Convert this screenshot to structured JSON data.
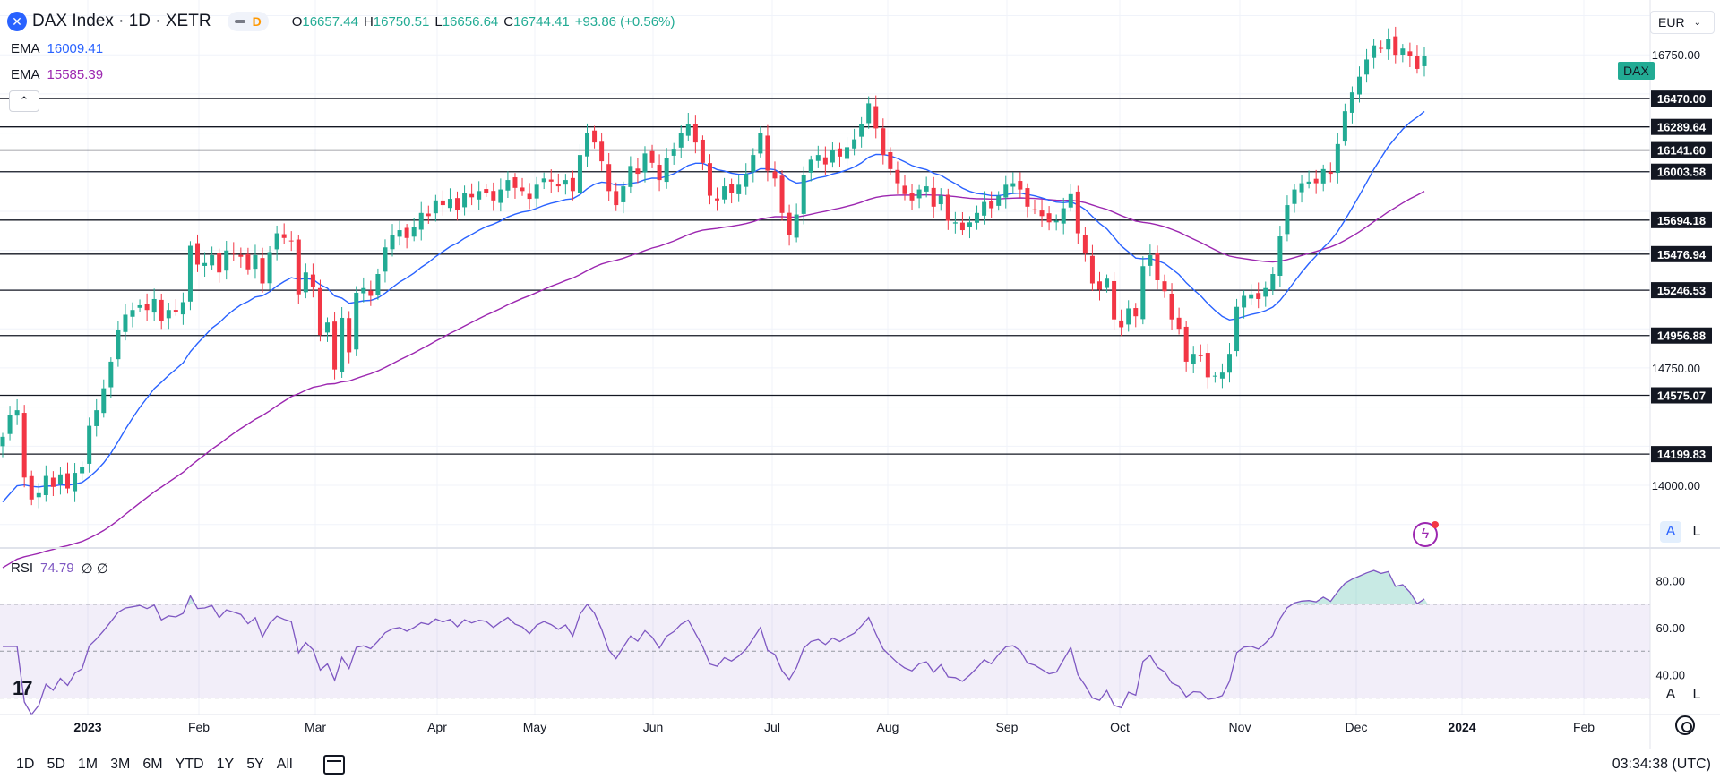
{
  "header": {
    "title": "DAX Index · 1D · XETR",
    "badge": "D",
    "ohlc": [
      {
        "k": "O",
        "v": "16657.44"
      },
      {
        "k": "H",
        "v": "16750.51"
      },
      {
        "k": "L",
        "v": "16656.64"
      },
      {
        "k": "C",
        "v": "16744.41"
      },
      {
        "k": "",
        "v": "+93.86 (+0.56%)"
      }
    ]
  },
  "indicators": {
    "ema_fast": {
      "label": "EMA",
      "value": "16009.41",
      "color": "#2962ff"
    },
    "ema_slow": {
      "label": "EMA",
      "value": "15585.39",
      "color": "#9c27b0"
    },
    "rsi": {
      "label": "RSI",
      "value": "74.79",
      "extra": "∅ ∅"
    }
  },
  "price_axis": {
    "currency": "EUR",
    "symbol_tag": "DAX",
    "scale_buttons": [
      "A",
      "L"
    ],
    "visible_ticks": [
      "16750.00",
      "14750.00",
      "14000.00"
    ]
  },
  "levels": [
    "16470.00",
    "16289.64",
    "16141.60",
    "16003.58",
    "15694.18",
    "15476.94",
    "15246.53",
    "14956.88",
    "14575.07",
    "14199.83"
  ],
  "rsi_axis": {
    "ticks": [
      "80.00",
      "60.00",
      "40.00"
    ],
    "band": [
      30,
      70
    ]
  },
  "time_axis": {
    "labels": [
      "2023",
      "Feb",
      "Mar",
      "Apr",
      "May",
      "Jun",
      "Jul",
      "Aug",
      "Sep",
      "Oct",
      "Nov",
      "Dec",
      "2024",
      "Feb"
    ],
    "bold": [
      "2023",
      "2024"
    ]
  },
  "toolbar": {
    "timeframes": [
      "1D",
      "5D",
      "1M",
      "3M",
      "6M",
      "YTD",
      "1Y",
      "5Y",
      "All"
    ],
    "clock": "03:34:38 (UTC)"
  },
  "colors": {
    "up": "#22ab94",
    "down": "#f23645",
    "rsi": "#7e57c2",
    "ema_fast": "#2962ff",
    "ema_slow": "#9c27b0"
  },
  "chart_data": [
    {
      "type": "candlestick",
      "title": "DAX Index · 1D · XETR",
      "x_range": [
        "2022-12",
        "2024-02"
      ],
      "y_range": [
        13600,
        17100
      ],
      "log_scale": false,
      "grid": true,
      "horizontal_levels": [
        16470.0,
        16289.64,
        16141.6,
        16003.58,
        15694.18,
        15476.94,
        15246.53,
        14956.88,
        14575.07,
        14199.83
      ],
      "series": [
        {
          "type": "candlestick",
          "close": [
            14310,
            14450,
            14480,
            14050,
            13910,
            13950,
            14060,
            13990,
            14070,
            13980,
            14080,
            14120,
            14380,
            14480,
            14620,
            14790,
            14990,
            15090,
            15120,
            15150,
            15120,
            15190,
            15050,
            15120,
            15110,
            15170,
            15530,
            15410,
            15420,
            15470,
            15360,
            15500,
            15480,
            15460,
            15380,
            15470,
            15290,
            15490,
            15610,
            15580,
            15560,
            15220,
            15360,
            15270,
            14960,
            15040,
            14740,
            15070,
            14850,
            15230,
            15260,
            15210,
            15350,
            15520,
            15600,
            15630,
            15580,
            15650,
            15740,
            15720,
            15820,
            15790,
            15830,
            15760,
            15870,
            15840,
            15880,
            15870,
            15820,
            15890,
            15950,
            15900,
            15880,
            15830,
            15920,
            15960,
            15940,
            15910,
            15950,
            15880,
            16110,
            16250,
            16190,
            16070,
            15880,
            15790,
            15910,
            16040,
            15990,
            16120,
            16060,
            15950,
            16090,
            16150,
            16250,
            16310,
            16190,
            16060,
            15850,
            15820,
            15910,
            15870,
            15920,
            15990,
            16110,
            16250,
            16010,
            15960,
            15740,
            15600,
            15730,
            15980,
            16080,
            16110,
            16050,
            16140,
            16100,
            16160,
            16210,
            16310,
            16440,
            16280,
            16110,
            16020,
            15930,
            15860,
            15820,
            15890,
            15910,
            15780,
            15850,
            15690,
            15680,
            15630,
            15680,
            15740,
            15810,
            15770,
            15850,
            15920,
            15930,
            15890,
            15780,
            15760,
            15720,
            15680,
            15690,
            15770,
            15860,
            15610,
            15480,
            15290,
            15250,
            15320,
            15060,
            15010,
            15130,
            15080,
            15400,
            15470,
            15310,
            15240,
            15060,
            15000,
            14790,
            14840,
            14830,
            14690,
            14700,
            14720,
            14840,
            15140,
            15210,
            15220,
            15190,
            15260,
            15350,
            15590,
            15790,
            15890,
            15930,
            15940,
            15930,
            16020,
            15990,
            16180,
            16390,
            16510,
            16610,
            16720,
            16810,
            16790,
            16850,
            16750,
            16790,
            16740,
            16660,
            16744
          ]
        },
        {
          "name": "EMA",
          "type": "line",
          "last": 16009.41
        },
        {
          "name": "EMA",
          "type": "line",
          "last": 15585.39
        }
      ]
    },
    {
      "type": "line",
      "title": "RSI",
      "y_ticks": [
        40,
        60,
        80
      ],
      "band": [
        30,
        70
      ],
      "series": [
        {
          "name": "RSI",
          "last": 74.79
        }
      ]
    }
  ]
}
